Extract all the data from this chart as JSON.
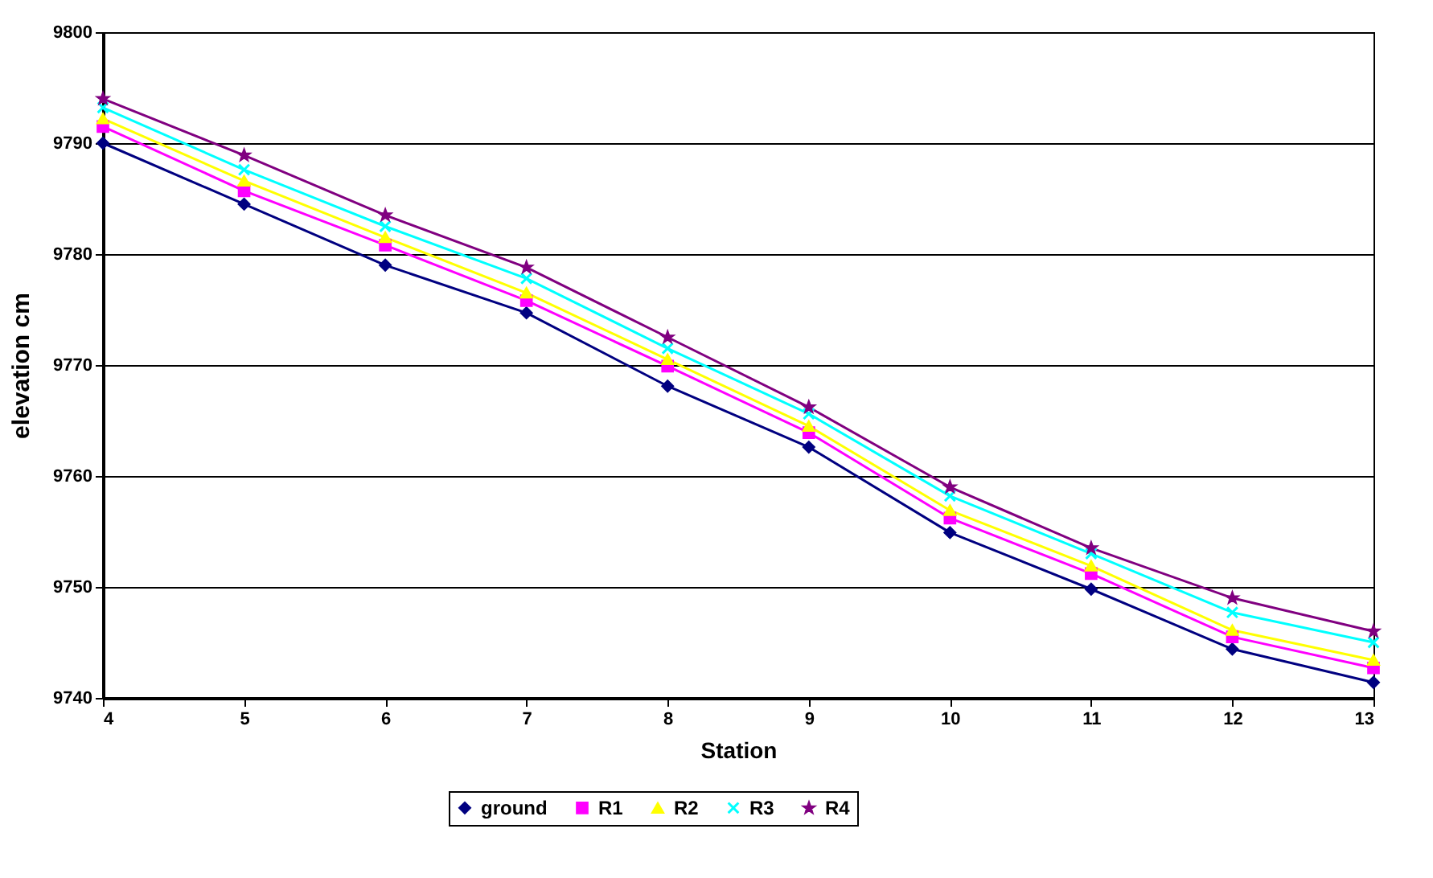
{
  "chart_data": {
    "type": "line",
    "xlabel": "Station",
    "ylabel": "elevation cm",
    "x": [
      4,
      5,
      6,
      7,
      8,
      9,
      10,
      11,
      12,
      13
    ],
    "series": [
      {
        "name": "ground",
        "color": "#000080",
        "marker": "diamond",
        "values": [
          9790,
          9784.5,
          9779,
          9774.7,
          9768.1,
          9762.6,
          9754.9,
          9749.8,
          9744.4,
          9741.4
        ]
      },
      {
        "name": "R1",
        "color": "#ff00ff",
        "marker": "square",
        "values": [
          9791.5,
          9785.7,
          9780.8,
          9775.8,
          9769.9,
          9763.9,
          9756.2,
          9751.2,
          9745.5,
          9742.7
        ]
      },
      {
        "name": "R2",
        "color": "#ffff00",
        "marker": "triangle",
        "values": [
          9792.2,
          9786.6,
          9781.5,
          9776.5,
          9770.5,
          9764.5,
          9756.9,
          9751.9,
          9746.1,
          9743.4
        ]
      },
      {
        "name": "R3",
        "color": "#00ffff",
        "marker": "cross",
        "values": [
          9793.2,
          9787.6,
          9782.5,
          9777.8,
          9771.5,
          9765.6,
          9758.2,
          9753.0,
          9747.7,
          9745.0
        ]
      },
      {
        "name": "R4",
        "color": "#800080",
        "marker": "star",
        "values": [
          9794.0,
          9788.9,
          9783.5,
          9778.8,
          9772.5,
          9766.2,
          9759.0,
          9753.5,
          9749.0,
          9746.0
        ]
      }
    ],
    "xlim": [
      4,
      13
    ],
    "xticks": [
      4,
      5,
      6,
      7,
      8,
      9,
      10,
      11,
      12,
      13
    ],
    "ylim": [
      9740,
      9800
    ],
    "yticks": [
      9740,
      9750,
      9760,
      9770,
      9780,
      9790,
      9800
    ],
    "grid": "y",
    "legend": "bottom",
    "line_style": "solid"
  }
}
